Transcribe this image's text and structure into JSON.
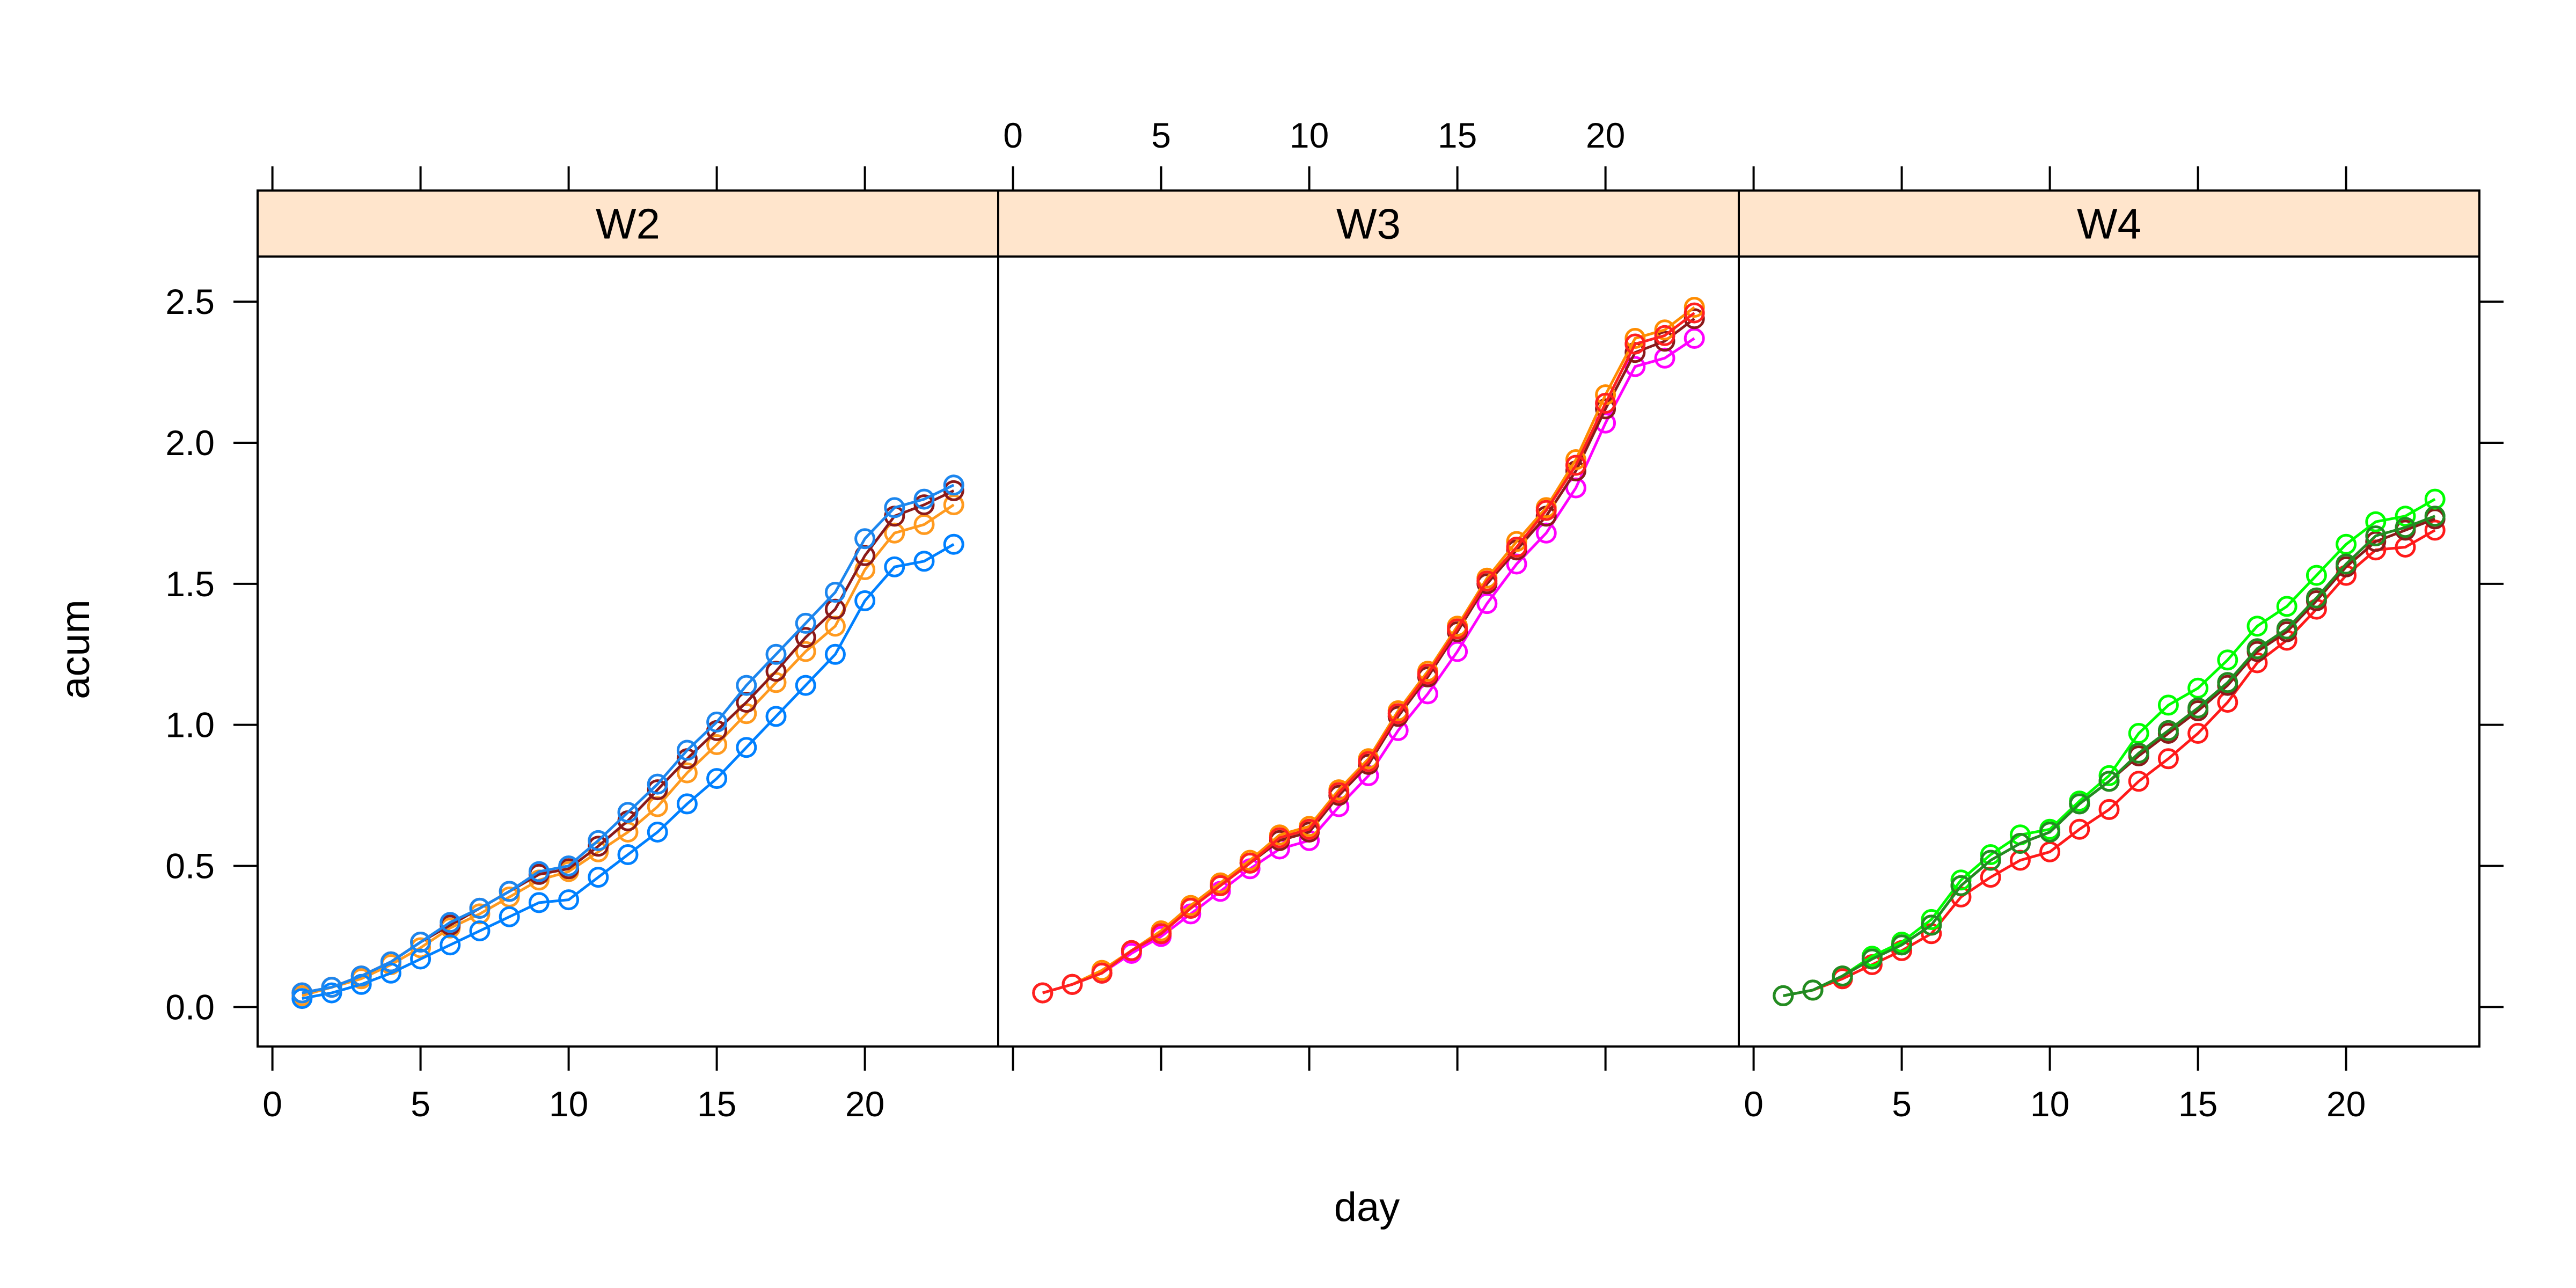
{
  "chart_data": {
    "type": "line",
    "xlabel": "day",
    "ylabel": "acum",
    "xlim": [
      -0.5,
      24.5
    ],
    "ylim": [
      -0.14,
      2.66
    ],
    "x_ticks": [
      0,
      5,
      10,
      15,
      20
    ],
    "y_ticks": [
      0.0,
      0.5,
      1.0,
      1.5,
      2.0,
      2.5
    ],
    "x_tick_labels": [
      "0",
      "5",
      "10",
      "15",
      "20"
    ],
    "y_tick_labels": [
      "0.0",
      "0.5",
      "1.0",
      "1.5",
      "2.0",
      "2.5"
    ],
    "strip_color": "#ffe5cc",
    "markers": "open-circles-with-lines",
    "panels": [
      {
        "label": "W2",
        "series": [
          {
            "color": "#ff9a1f",
            "x": [
              1,
              2,
              3,
              4,
              5,
              6,
              7,
              8,
              9,
              10,
              11,
              12,
              13,
              14,
              15,
              16,
              17,
              18,
              19,
              20,
              21,
              22,
              23
            ],
            "values": [
              0.04,
              0.07,
              0.1,
              0.15,
              0.21,
              0.28,
              0.33,
              0.39,
              0.45,
              0.48,
              0.55,
              0.62,
              0.71,
              0.83,
              0.93,
              1.04,
              1.15,
              1.26,
              1.35,
              1.55,
              1.68,
              1.71,
              1.78
            ]
          },
          {
            "color": "#8b1a1a",
            "x": [
              1,
              2,
              3,
              4,
              5,
              6,
              7,
              8,
              9,
              10,
              11,
              12,
              13,
              14,
              15,
              16,
              17,
              18,
              19,
              20,
              21,
              22,
              23
            ],
            "values": [
              0.05,
              0.07,
              0.11,
              0.16,
              0.23,
              0.29,
              0.35,
              0.41,
              0.47,
              0.49,
              0.57,
              0.66,
              0.77,
              0.88,
              0.98,
              1.08,
              1.19,
              1.31,
              1.41,
              1.6,
              1.74,
              1.78,
              1.83
            ]
          },
          {
            "color": "#0080ff",
            "x": [
              1,
              2,
              3,
              4,
              5,
              6,
              7,
              8,
              9,
              10,
              11,
              12,
              13,
              14,
              15,
              16,
              17,
              18,
              19,
              20,
              21,
              22,
              23
            ],
            "values": [
              0.03,
              0.05,
              0.08,
              0.12,
              0.17,
              0.22,
              0.27,
              0.32,
              0.37,
              0.38,
              0.46,
              0.54,
              0.62,
              0.72,
              0.81,
              0.92,
              1.03,
              1.14,
              1.25,
              1.44,
              1.56,
              1.58,
              1.64
            ]
          },
          {
            "color": "#1c86ee",
            "x": [
              1,
              2,
              3,
              4,
              5,
              6,
              7,
              8,
              9,
              10,
              11,
              12,
              13,
              14,
              15,
              16,
              17,
              18,
              19,
              20,
              21,
              22,
              23
            ],
            "values": [
              0.05,
              0.07,
              0.11,
              0.16,
              0.23,
              0.3,
              0.35,
              0.41,
              0.48,
              0.5,
              0.59,
              0.69,
              0.79,
              0.91,
              1.01,
              1.14,
              1.25,
              1.36,
              1.47,
              1.66,
              1.77,
              1.8,
              1.85
            ]
          }
        ]
      },
      {
        "label": "W3",
        "series": [
          {
            "color": "#ff00ff",
            "x": [
              1,
              2,
              3,
              4,
              5,
              6,
              7,
              8,
              9,
              10,
              11,
              12,
              13,
              14,
              15,
              16,
              17,
              18,
              19,
              20,
              21,
              22,
              23
            ],
            "values": [
              0.05,
              0.08,
              0.12,
              0.19,
              0.25,
              0.33,
              0.41,
              0.49,
              0.56,
              0.59,
              0.71,
              0.82,
              0.98,
              1.11,
              1.26,
              1.43,
              1.57,
              1.68,
              1.84,
              2.07,
              2.27,
              2.3,
              2.37
            ]
          },
          {
            "color": "#8b1a1a",
            "x": [
              1,
              2,
              3,
              4,
              5,
              6,
              7,
              8,
              9,
              10,
              11,
              12,
              13,
              14,
              15,
              16,
              17,
              18,
              19,
              20,
              21,
              22,
              23
            ],
            "values": [
              0.05,
              0.08,
              0.12,
              0.2,
              0.26,
              0.35,
              0.43,
              0.51,
              0.59,
              0.62,
              0.75,
              0.86,
              1.03,
              1.17,
              1.33,
              1.5,
              1.62,
              1.74,
              1.9,
              2.12,
              2.32,
              2.36,
              2.44
            ]
          },
          {
            "color": "#ff8c00",
            "x": [
              1,
              2,
              3,
              4,
              5,
              6,
              7,
              8,
              9,
              10,
              11,
              12,
              13,
              14,
              15,
              16,
              17,
              18,
              19,
              20,
              21,
              22,
              23
            ],
            "values": [
              0.05,
              0.08,
              0.13,
              0.2,
              0.27,
              0.36,
              0.44,
              0.52,
              0.61,
              0.64,
              0.77,
              0.88,
              1.05,
              1.19,
              1.35,
              1.52,
              1.65,
              1.77,
              1.94,
              2.17,
              2.37,
              2.4,
              2.48
            ]
          },
          {
            "color": "#ff2020",
            "x": [
              1,
              2,
              3,
              4,
              5,
              6,
              7,
              8,
              9,
              10,
              11,
              12,
              13,
              14,
              15,
              16,
              17,
              18,
              19,
              20,
              21,
              22,
              23
            ],
            "values": [
              0.05,
              0.08,
              0.12,
              0.2,
              0.26,
              0.35,
              0.43,
              0.51,
              0.6,
              0.63,
              0.76,
              0.87,
              1.04,
              1.18,
              1.34,
              1.51,
              1.63,
              1.76,
              1.92,
              2.14,
              2.35,
              2.38,
              2.46
            ]
          }
        ]
      },
      {
        "label": "W4",
        "series": [
          {
            "color": "#ff1a1a",
            "x": [
              1,
              2,
              3,
              4,
              5,
              6,
              7,
              8,
              9,
              10,
              11,
              12,
              13,
              14,
              15,
              16,
              17,
              18,
              19,
              20,
              21,
              22,
              23
            ],
            "values": [
              0.04,
              0.06,
              0.1,
              0.15,
              0.2,
              0.26,
              0.39,
              0.46,
              0.52,
              0.55,
              0.63,
              0.7,
              0.8,
              0.88,
              0.97,
              1.08,
              1.22,
              1.3,
              1.41,
              1.53,
              1.62,
              1.63,
              1.69
            ]
          },
          {
            "color": "#8b1a1a",
            "x": [
              1,
              2,
              3,
              4,
              5,
              6,
              7,
              8,
              9,
              10,
              11,
              12,
              13,
              14,
              15,
              16,
              17,
              18,
              19,
              20,
              21,
              22,
              23
            ],
            "values": [
              0.04,
              0.06,
              0.11,
              0.17,
              0.22,
              0.29,
              0.43,
              0.52,
              0.58,
              0.62,
              0.72,
              0.8,
              0.89,
              0.97,
              1.05,
              1.14,
              1.26,
              1.33,
              1.44,
              1.56,
              1.65,
              1.69,
              1.73
            ]
          },
          {
            "color": "#00ff00",
            "x": [
              1,
              2,
              3,
              4,
              5,
              6,
              7,
              8,
              9,
              10,
              11,
              12,
              13,
              14,
              15,
              16,
              17,
              18,
              19,
              20,
              21,
              22,
              23
            ],
            "values": [
              0.04,
              0.06,
              0.11,
              0.18,
              0.23,
              0.31,
              0.45,
              0.54,
              0.61,
              0.63,
              0.73,
              0.82,
              0.97,
              1.07,
              1.13,
              1.23,
              1.35,
              1.42,
              1.53,
              1.64,
              1.72,
              1.74,
              1.8
            ]
          },
          {
            "color": "#228b22",
            "x": [
              1,
              2,
              3,
              4,
              5,
              6,
              7,
              8,
              9,
              10,
              11,
              12,
              13,
              14,
              15,
              16,
              17,
              18,
              19,
              20,
              21,
              22,
              23
            ],
            "values": [
              0.04,
              0.06,
              0.11,
              0.17,
              0.22,
              0.29,
              0.43,
              0.52,
              0.58,
              0.62,
              0.72,
              0.8,
              0.9,
              0.98,
              1.06,
              1.15,
              1.27,
              1.34,
              1.45,
              1.57,
              1.67,
              1.7,
              1.74
            ]
          }
        ]
      }
    ]
  }
}
